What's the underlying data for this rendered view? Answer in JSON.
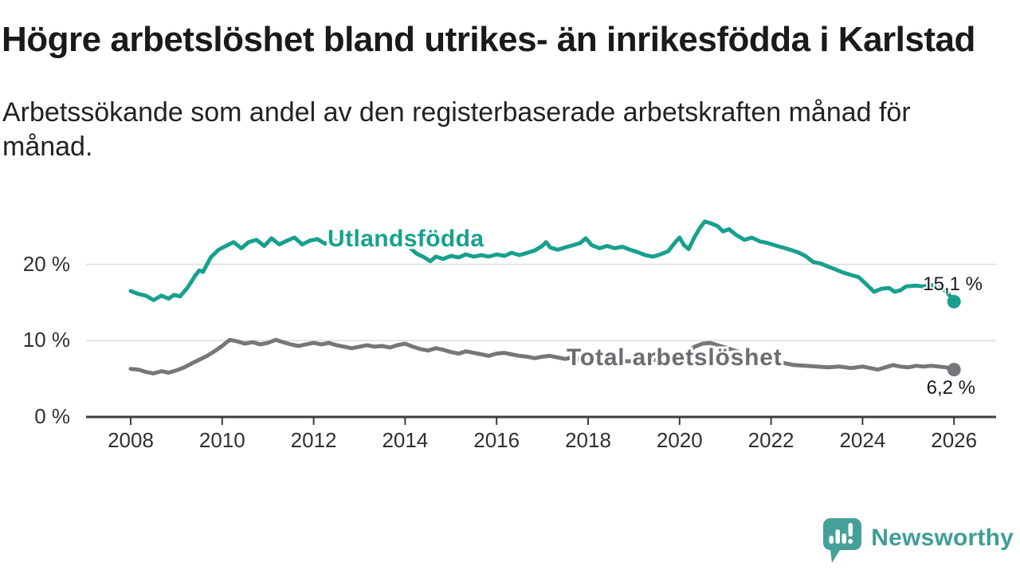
{
  "header": {
    "title": "Högre arbetslöshet bland utrikes- än inrikesfödda i Karlstad",
    "subtitle_line1": "Arbetssökande som andel av den registerbaserade arbetskraften månad för",
    "subtitle_line2": "månad."
  },
  "footer": {
    "brand": "Newsworthy"
  },
  "colors": {
    "teal_line": "#18A08E",
    "gray_line": "#77777B",
    "gray_label": "#6C6C71",
    "text": "#1A1A1A",
    "axis_text": "#303030",
    "grid": "#DBDBDB",
    "axis": "#3D3D3D",
    "brand_teal": "#3E9D98",
    "brand_icon_bg": "#46A09A"
  },
  "chart_data": {
    "type": "line",
    "title": "Högre arbetslöshet bland utrikes- än inrikesfödda i Karlstad",
    "subtitle": "Arbetssökande som andel av den registerbaserade arbetskraften månad för månad.",
    "unit": "%",
    "grid": true,
    "legend_position": "inline-labels",
    "x_range": [
      2007.85,
      2026.9
    ],
    "y_range": [
      0,
      26.5
    ],
    "x_axis": {
      "years": [
        2008,
        2010,
        2012,
        2014,
        2016,
        2018,
        2020,
        2022,
        2024,
        2026
      ],
      "labels": [
        "2008",
        "2010",
        "2012",
        "2014",
        "2016",
        "2018",
        "2020",
        "2022",
        "2024",
        "2026"
      ]
    },
    "y_axis": {
      "ticks": [
        {
          "v": 0,
          "label": "0 %"
        },
        {
          "v": 10,
          "label": "10 %"
        },
        {
          "v": 20,
          "label": "20 %"
        }
      ]
    },
    "series": [
      {
        "name": "Utlandsfödda",
        "color": "#18A08E",
        "end_label": "15,1 %",
        "end_value": 15.1,
        "points": [
          [
            2008.0,
            16.5
          ],
          [
            2008.17,
            16.1
          ],
          [
            2008.33,
            15.9
          ],
          [
            2008.5,
            15.3
          ],
          [
            2008.67,
            15.9
          ],
          [
            2008.83,
            15.5
          ],
          [
            2008.95,
            16.0
          ],
          [
            2009.08,
            15.8
          ],
          [
            2009.25,
            17.0
          ],
          [
            2009.42,
            18.6
          ],
          [
            2009.5,
            19.2
          ],
          [
            2009.58,
            19.0
          ],
          [
            2009.75,
            20.9
          ],
          [
            2009.92,
            21.9
          ],
          [
            2010.08,
            22.4
          ],
          [
            2010.25,
            22.9
          ],
          [
            2010.42,
            22.1
          ],
          [
            2010.58,
            22.9
          ],
          [
            2010.75,
            23.2
          ],
          [
            2010.92,
            22.4
          ],
          [
            2011.08,
            23.4
          ],
          [
            2011.25,
            22.6
          ],
          [
            2011.42,
            23.1
          ],
          [
            2011.58,
            23.5
          ],
          [
            2011.75,
            22.6
          ],
          [
            2011.92,
            23.1
          ],
          [
            2012.08,
            23.3
          ],
          [
            2012.25,
            22.7
          ],
          [
            2012.42,
            23.2
          ],
          [
            2012.58,
            22.8
          ],
          [
            2012.75,
            23.0
          ],
          [
            2012.92,
            22.8
          ],
          [
            2013.08,
            23.2
          ],
          [
            2013.25,
            22.9
          ],
          [
            2013.42,
            23.3
          ],
          [
            2013.58,
            22.9
          ],
          [
            2013.75,
            23.1
          ],
          [
            2013.92,
            22.9
          ],
          [
            2014.08,
            22.3
          ],
          [
            2014.25,
            21.4
          ],
          [
            2014.42,
            20.9
          ],
          [
            2014.55,
            20.4
          ],
          [
            2014.67,
            21.0
          ],
          [
            2014.83,
            20.7
          ],
          [
            2015.0,
            21.1
          ],
          [
            2015.17,
            20.9
          ],
          [
            2015.33,
            21.3
          ],
          [
            2015.5,
            21.0
          ],
          [
            2015.67,
            21.2
          ],
          [
            2015.83,
            21.0
          ],
          [
            2016.0,
            21.3
          ],
          [
            2016.17,
            21.1
          ],
          [
            2016.33,
            21.5
          ],
          [
            2016.5,
            21.2
          ],
          [
            2016.67,
            21.5
          ],
          [
            2016.83,
            21.8
          ],
          [
            2017.0,
            22.4
          ],
          [
            2017.08,
            22.9
          ],
          [
            2017.17,
            22.2
          ],
          [
            2017.33,
            21.9
          ],
          [
            2017.5,
            22.2
          ],
          [
            2017.67,
            22.5
          ],
          [
            2017.83,
            22.8
          ],
          [
            2017.95,
            23.4
          ],
          [
            2018.08,
            22.5
          ],
          [
            2018.25,
            22.1
          ],
          [
            2018.42,
            22.4
          ],
          [
            2018.58,
            22.1
          ],
          [
            2018.75,
            22.3
          ],
          [
            2018.92,
            21.9
          ],
          [
            2019.08,
            21.6
          ],
          [
            2019.25,
            21.2
          ],
          [
            2019.42,
            21.0
          ],
          [
            2019.58,
            21.3
          ],
          [
            2019.75,
            21.7
          ],
          [
            2019.92,
            23.0
          ],
          [
            2020.0,
            23.5
          ],
          [
            2020.1,
            22.5
          ],
          [
            2020.2,
            22.0
          ],
          [
            2020.33,
            23.6
          ],
          [
            2020.45,
            24.8
          ],
          [
            2020.55,
            25.6
          ],
          [
            2020.67,
            25.4
          ],
          [
            2020.83,
            25.0
          ],
          [
            2020.95,
            24.3
          ],
          [
            2021.08,
            24.6
          ],
          [
            2021.25,
            23.8
          ],
          [
            2021.42,
            23.2
          ],
          [
            2021.58,
            23.5
          ],
          [
            2021.75,
            23.0
          ],
          [
            2021.92,
            22.8
          ],
          [
            2022.08,
            22.5
          ],
          [
            2022.25,
            22.2
          ],
          [
            2022.42,
            21.9
          ],
          [
            2022.58,
            21.6
          ],
          [
            2022.75,
            21.1
          ],
          [
            2022.92,
            20.3
          ],
          [
            2023.08,
            20.1
          ],
          [
            2023.25,
            19.7
          ],
          [
            2023.42,
            19.3
          ],
          [
            2023.58,
            18.9
          ],
          [
            2023.75,
            18.6
          ],
          [
            2023.92,
            18.3
          ],
          [
            2024.08,
            17.4
          ],
          [
            2024.25,
            16.4
          ],
          [
            2024.42,
            16.8
          ],
          [
            2024.58,
            16.9
          ],
          [
            2024.7,
            16.4
          ],
          [
            2024.83,
            16.6
          ],
          [
            2024.95,
            17.1
          ],
          [
            2025.17,
            17.2
          ],
          [
            2025.33,
            17.1
          ],
          [
            2025.5,
            17.3
          ],
          [
            2025.67,
            16.9
          ],
          [
            2025.83,
            16.5
          ],
          [
            2026.0,
            15.1
          ]
        ]
      },
      {
        "name": "Total arbetslöshet",
        "color": "#77777B",
        "end_label": "6,2 %",
        "end_value": 6.2,
        "points": [
          [
            2008.0,
            6.3
          ],
          [
            2008.17,
            6.2
          ],
          [
            2008.33,
            5.9
          ],
          [
            2008.5,
            5.7
          ],
          [
            2008.67,
            6.0
          ],
          [
            2008.83,
            5.8
          ],
          [
            2009.0,
            6.1
          ],
          [
            2009.17,
            6.5
          ],
          [
            2009.33,
            7.0
          ],
          [
            2009.5,
            7.5
          ],
          [
            2009.67,
            8.0
          ],
          [
            2009.83,
            8.6
          ],
          [
            2010.0,
            9.3
          ],
          [
            2010.08,
            9.7
          ],
          [
            2010.17,
            10.1
          ],
          [
            2010.33,
            9.9
          ],
          [
            2010.5,
            9.6
          ],
          [
            2010.67,
            9.8
          ],
          [
            2010.83,
            9.5
          ],
          [
            2011.0,
            9.7
          ],
          [
            2011.17,
            10.1
          ],
          [
            2011.33,
            9.8
          ],
          [
            2011.5,
            9.5
          ],
          [
            2011.67,
            9.3
          ],
          [
            2011.83,
            9.5
          ],
          [
            2012.0,
            9.7
          ],
          [
            2012.17,
            9.5
          ],
          [
            2012.33,
            9.7
          ],
          [
            2012.5,
            9.4
          ],
          [
            2012.67,
            9.2
          ],
          [
            2012.83,
            9.0
          ],
          [
            2013.0,
            9.2
          ],
          [
            2013.17,
            9.4
          ],
          [
            2013.33,
            9.2
          ],
          [
            2013.5,
            9.3
          ],
          [
            2013.67,
            9.1
          ],
          [
            2013.83,
            9.4
          ],
          [
            2014.0,
            9.6
          ],
          [
            2014.17,
            9.2
          ],
          [
            2014.33,
            8.9
          ],
          [
            2014.5,
            8.7
          ],
          [
            2014.67,
            9.0
          ],
          [
            2014.83,
            8.8
          ],
          [
            2015.0,
            8.5
          ],
          [
            2015.17,
            8.3
          ],
          [
            2015.33,
            8.6
          ],
          [
            2015.5,
            8.4
          ],
          [
            2015.67,
            8.2
          ],
          [
            2015.83,
            8.0
          ],
          [
            2016.0,
            8.3
          ],
          [
            2016.17,
            8.4
          ],
          [
            2016.33,
            8.2
          ],
          [
            2016.5,
            8.0
          ],
          [
            2016.67,
            7.9
          ],
          [
            2016.83,
            7.7
          ],
          [
            2017.0,
            7.9
          ],
          [
            2017.17,
            8.0
          ],
          [
            2017.33,
            7.8
          ],
          [
            2017.5,
            7.6
          ],
          [
            2017.67,
            7.8
          ],
          [
            2017.83,
            7.5
          ],
          [
            2018.0,
            7.4
          ],
          [
            2018.25,
            7.3
          ],
          [
            2018.5,
            7.2
          ],
          [
            2018.75,
            7.3
          ],
          [
            2019.0,
            7.3
          ],
          [
            2019.25,
            7.4
          ],
          [
            2019.5,
            7.5
          ],
          [
            2019.75,
            7.7
          ],
          [
            2020.0,
            7.9
          ],
          [
            2020.17,
            8.5
          ],
          [
            2020.33,
            9.2
          ],
          [
            2020.5,
            9.6
          ],
          [
            2020.67,
            9.7
          ],
          [
            2020.83,
            9.4
          ],
          [
            2021.0,
            9.1
          ],
          [
            2021.25,
            8.6
          ],
          [
            2021.5,
            8.2
          ],
          [
            2021.75,
            7.8
          ],
          [
            2022.0,
            7.4
          ],
          [
            2022.25,
            7.1
          ],
          [
            2022.5,
            6.8
          ],
          [
            2022.75,
            6.7
          ],
          [
            2023.0,
            6.6
          ],
          [
            2023.25,
            6.5
          ],
          [
            2023.5,
            6.6
          ],
          [
            2023.75,
            6.4
          ],
          [
            2024.0,
            6.6
          ],
          [
            2024.17,
            6.4
          ],
          [
            2024.33,
            6.2
          ],
          [
            2024.5,
            6.5
          ],
          [
            2024.67,
            6.8
          ],
          [
            2024.83,
            6.6
          ],
          [
            2025.0,
            6.5
          ],
          [
            2025.17,
            6.7
          ],
          [
            2025.33,
            6.6
          ],
          [
            2025.5,
            6.7
          ],
          [
            2025.67,
            6.6
          ],
          [
            2025.83,
            6.5
          ],
          [
            2026.0,
            6.2
          ]
        ]
      }
    ]
  }
}
